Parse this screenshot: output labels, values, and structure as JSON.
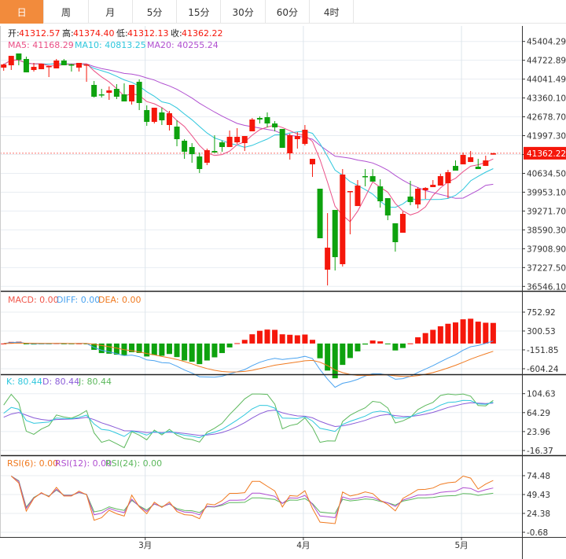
{
  "tabs": [
    {
      "label": "日",
      "active": true
    },
    {
      "label": "周"
    },
    {
      "label": "月"
    },
    {
      "label": "5分"
    },
    {
      "label": "15分"
    },
    {
      "label": "30分"
    },
    {
      "label": "60分"
    },
    {
      "label": "4时"
    }
  ],
  "ohlc_header": {
    "open_label": "开:",
    "open": "41312.57",
    "high_label": "高:",
    "high": "41374.40",
    "low_label": "低:",
    "low": "41312.13",
    "close_label": "收:",
    "close": "41362.22"
  },
  "ma_header": {
    "ma5": "MA5: 41168.29",
    "ma10": "MA10: 40813.25",
    "ma20": "MA20: 40255.24"
  },
  "macd_header": {
    "macd": "MACD: 0.00",
    "diff": "DIFF: 0.00",
    "dea": "DEA: 0.00"
  },
  "kdj_header": {
    "k": "K: 80.44",
    "d": "D: 80.44",
    "j": "J: 80.44"
  },
  "rsi_header": {
    "rsi6": "RSI(6): 0.00",
    "rsi12": "RSI(12): 0.00",
    "rsi24": "RSI(24): 0.00"
  },
  "current_price": "41362.22",
  "colors": {
    "up": "#f5170b",
    "down": "#0ea20e",
    "ma5": "#ea4f86",
    "ma10": "#2ec7dd",
    "ma20": "#b04fd0",
    "diff": "#4aa3f0",
    "dea": "#f07a20",
    "k": "#2ec7dd",
    "d": "#8a5cd8",
    "j": "#5cb85c",
    "rsi6": "#f07a20",
    "rsi12": "#b04fd0",
    "rsi24": "#5cb85c",
    "tab_active": "#f28b3c"
  },
  "chart_data": {
    "type": "candlestick",
    "x_labels": [
      {
        "index": 19,
        "label": "3月"
      },
      {
        "index": 40,
        "label": "4月"
      },
      {
        "index": 61,
        "label": "5月"
      }
    ],
    "price_axis": {
      "ticks": [
        "45404.29",
        "44722.89",
        "44041.49",
        "43360.10",
        "42678.70",
        "41997.30",
        "41316.90",
        "40634.50",
        "39953.10",
        "39271.70",
        "38590.30",
        "37908.90",
        "37227.50",
        "36546.10"
      ],
      "range": [
        36546.1,
        45404.29
      ]
    },
    "macd_axis": {
      "ticks": [
        "752.92",
        "300.53",
        "-151.85",
        "-604.24"
      ],
      "range": [
        -604.24,
        752.92
      ]
    },
    "kdj_axis": {
      "ticks": [
        "104.63",
        "64.29",
        "23.96",
        "-16.37"
      ],
      "range": [
        -16.37,
        104.63
      ]
    },
    "rsi_axis": {
      "ticks": [
        "74.48",
        "49.43",
        "24.38",
        "-0.68"
      ],
      "range": [
        -0.68,
        74.48
      ]
    },
    "candles": [
      [
        44457,
        44599,
        44343,
        44571
      ],
      [
        44542,
        44883,
        44372,
        44883
      ],
      [
        44969,
        44969,
        44542,
        44741
      ],
      [
        44770,
        44855,
        44286,
        44286
      ],
      [
        44372,
        44628,
        44315,
        44485
      ],
      [
        44400,
        44599,
        44400,
        44599
      ],
      [
        44485,
        44514,
        44116,
        44514
      ],
      [
        44429,
        44770,
        44429,
        44713
      ],
      [
        44713,
        44770,
        44542,
        44542
      ],
      [
        44571,
        44599,
        44315,
        44542
      ],
      [
        44457,
        44628,
        44315,
        44628
      ],
      [
        44542,
        44571,
        43945,
        44571
      ],
      [
        43832,
        43974,
        43377,
        43405
      ],
      [
        43490,
        43689,
        43377,
        43462
      ],
      [
        43547,
        43775,
        43291,
        43633
      ],
      [
        43689,
        43860,
        43320,
        43405
      ],
      [
        43490,
        43888,
        43235,
        43235
      ],
      [
        43235,
        43832,
        43121,
        43832
      ],
      [
        43945,
        44031,
        42922,
        43178
      ],
      [
        42922,
        43092,
        42353,
        42495
      ],
      [
        42495,
        43007,
        42438,
        43007
      ],
      [
        42837,
        43007,
        42382,
        42552
      ],
      [
        42382,
        42893,
        42183,
        42808
      ],
      [
        42325,
        42552,
        41614,
        41870
      ],
      [
        41813,
        41870,
        41159,
        41415
      ],
      [
        41586,
        41728,
        41017,
        41330
      ],
      [
        41244,
        41387,
        40647,
        40790
      ],
      [
        41017,
        41529,
        40932,
        41472
      ],
      [
        41443,
        42012,
        41387,
        41387
      ],
      [
        41756,
        41813,
        41415,
        41586
      ],
      [
        41586,
        42183,
        41586,
        41955
      ],
      [
        41756,
        42268,
        41699,
        41955
      ],
      [
        41728,
        41984,
        41443,
        41984
      ],
      [
        42154,
        42637,
        42154,
        42581
      ],
      [
        42637,
        42694,
        42438,
        42581
      ],
      [
        42666,
        42837,
        42296,
        42438
      ],
      [
        42438,
        42524,
        42154,
        42296
      ],
      [
        42239,
        42239,
        41557,
        41557
      ],
      [
        41358,
        42069,
        41131,
        42012
      ],
      [
        41870,
        42126,
        41529,
        41984
      ],
      [
        41699,
        42382,
        41642,
        42211
      ],
      [
        40960,
        41159,
        40505,
        41159
      ],
      [
        40079,
        40079,
        38288,
        38288
      ],
      [
        37151,
        39197,
        36582,
        37947
      ],
      [
        39311,
        39311,
        37122,
        37605
      ],
      [
        37350,
        40790,
        37264,
        40591
      ],
      [
        39980,
        39994,
        38430,
        39994
      ],
      [
        39453,
        40392,
        39453,
        40193
      ],
      [
        40534,
        40790,
        40164,
        40505
      ],
      [
        40534,
        40790,
        40335,
        40335
      ],
      [
        40164,
        40420,
        39396,
        39624
      ],
      [
        39738,
        39738,
        38942,
        39112
      ],
      [
        38828,
        38828,
        37804,
        38146
      ],
      [
        38487,
        39254,
        38487,
        39169
      ],
      [
        39794,
        40363,
        39482,
        39595
      ],
      [
        39510,
        40136,
        39368,
        40079
      ],
      [
        40022,
        40136,
        39709,
        40107
      ],
      [
        40136,
        40392,
        40136,
        40221
      ],
      [
        40193,
        40619,
        40193,
        40534
      ],
      [
        40278,
        40761,
        39738,
        40676
      ],
      [
        40903,
        41102,
        40733,
        40733
      ],
      [
        40960,
        41387,
        40960,
        41301
      ],
      [
        41045,
        41443,
        41045,
        41216
      ],
      [
        40875,
        41159,
        40790,
        40790
      ],
      [
        40903,
        41273,
        40903,
        41102
      ],
      [
        41312.57,
        41374.4,
        41312.13,
        41362.22
      ]
    ],
    "candle_format": [
      "open",
      "high",
      "low",
      "close"
    ],
    "indicators": [
      "MA5",
      "MA10",
      "MA20",
      "MACD(12,26,9)",
      "KDJ(9,3,3)",
      "RSI(6,12,24)"
    ]
  }
}
